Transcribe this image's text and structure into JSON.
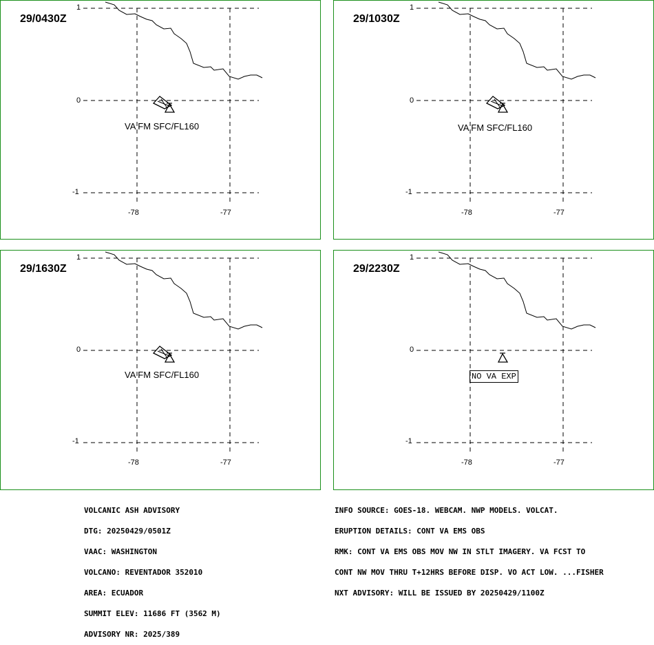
{
  "panels": [
    {
      "time": "29/0430Z",
      "label": "VA FM SFC/FL160",
      "ash": true
    },
    {
      "time": "29/1030Z",
      "label": "VA FM SFC/FL160",
      "ash": true
    },
    {
      "time": "29/1630Z",
      "label": "VA FM SFC/FL160",
      "ash": true
    },
    {
      "time": "29/2230Z",
      "label": "NO VA EXP",
      "ash": false
    }
  ],
  "axes": {
    "lat_ticks": [
      "1",
      "0",
      "-1"
    ],
    "lon_ticks": [
      "-78",
      "-77"
    ]
  },
  "advisory_left": [
    "VOLCANIC ASH ADVISORY",
    "DTG: 20250429/0501Z",
    "VAAC: WASHINGTON",
    "VOLCANO: REVENTADOR 352010",
    "AREA: ECUADOR",
    "SUMMIT ELEV: 11686 FT (3562 M)",
    "ADVISORY NR: 2025/389"
  ],
  "advisory_right": [
    "INFO SOURCE: GOES-18. WEBCAM. NWP MODELS. VOLCAT.",
    "ERUPTION DETAILS: CONT VA EMS OBS",
    "RMK: CONT VA EMS OBS MOV NW IN STLT IMAGERY. VA FCST TO",
    "CONT NW MOV THRU T+12HRS BEFORE DISP. VO ACT LOW. ...FISHER",
    "NXT ADVISORY: WILL BE ISSUED BY 20250429/1100Z"
  ],
  "colors": {
    "panel_border": "#1a8f1a",
    "lines": "#000000"
  }
}
